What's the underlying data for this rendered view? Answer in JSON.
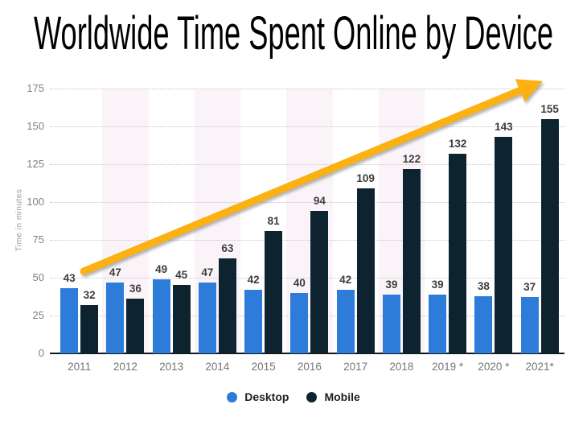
{
  "title": "Worldwide Time Spent Online by Device",
  "chart_data": {
    "type": "bar",
    "title": "Worldwide Time Spent Online by Device",
    "categories": [
      "2011",
      "2012",
      "2013",
      "2014",
      "2015",
      "2016",
      "2017",
      "2018",
      "2019 *",
      "2020 *",
      "2021*"
    ],
    "series": [
      {
        "name": "Desktop",
        "color": "#2d7cd9",
        "values": [
          43,
          47,
          49,
          47,
          42,
          40,
          42,
          39,
          39,
          38,
          37
        ]
      },
      {
        "name": "Mobile",
        "color": "#0d2430",
        "values": [
          32,
          36,
          45,
          63,
          81,
          94,
          109,
          122,
          132,
          143,
          155
        ]
      }
    ],
    "xlabel": "",
    "ylabel": "Time in minutes",
    "yticks": [
      0,
      25,
      50,
      75,
      100,
      125,
      150,
      175
    ],
    "ylim": [
      0,
      175
    ],
    "grid": "dotted-horizontal",
    "data_labels": true,
    "legend_position": "bottom",
    "background_stripes": {
      "style": "alternating-category-columns",
      "color": "#faf4f9",
      "striped_categories": [
        "2012",
        "2014",
        "2016",
        "2018",
        "2020"
      ]
    },
    "annotation": {
      "type": "trend-arrow",
      "direction": "up-right",
      "color": "#fab111"
    }
  }
}
